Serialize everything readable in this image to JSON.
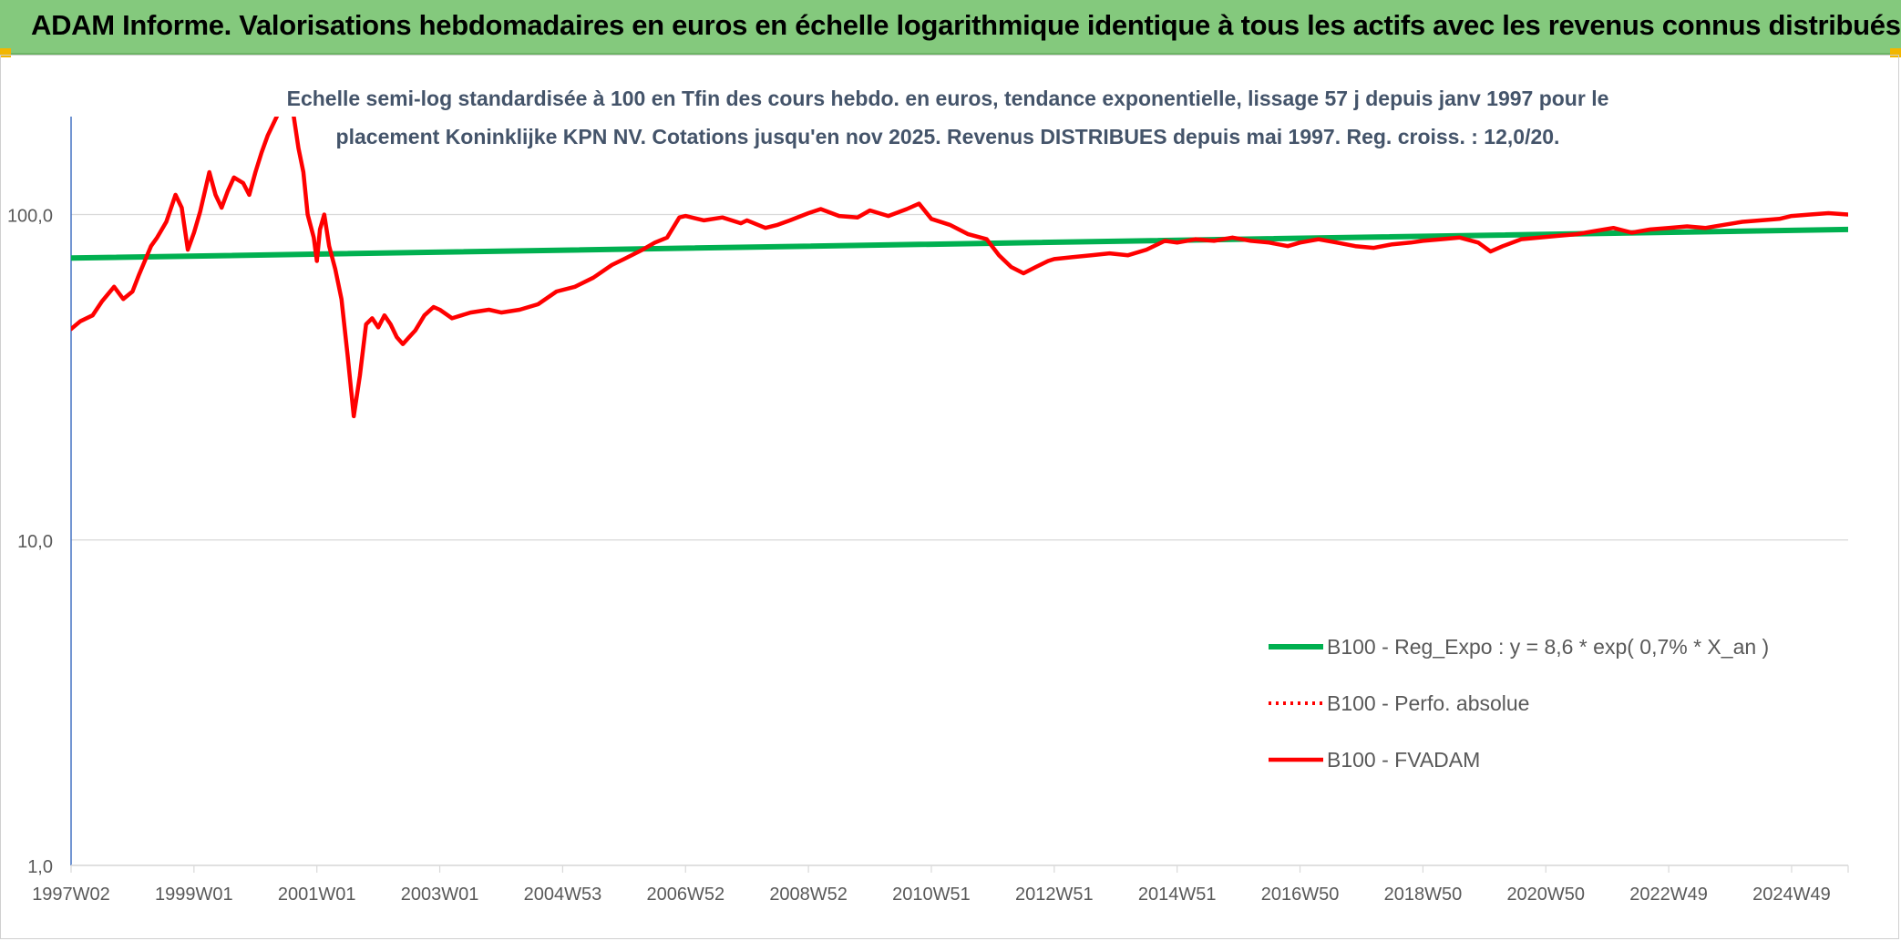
{
  "header": {
    "title": "ADAM Informe. Valorisations hebdomadaires en euros en échelle logarithmique identique à tous les actifs avec les revenus connus distribués"
  },
  "colors": {
    "header_bg": "#84c97d",
    "regression": "#00b050",
    "fvadam": "#ff0000",
    "perfo": "#ff0000",
    "axis_text": "#595959",
    "subtitle_text": "#44546a",
    "gridline": "#d9d9d9",
    "y_axis": "#4472c4"
  },
  "chart_data": {
    "type": "line",
    "title": "Echelle semi-log standardisée à 100 en Tfin des cours hebdo. en euros, tendance exponentielle, lissage 57 j depuis janv 1997 pour le placement Koninklijke KPN NV. Cotations jusqu'en nov 2025. Revenus DISTRIBUES depuis mai 1997. Reg. croiss. : 12,0/20.",
    "title_lines": [
      "Echelle semi-log standardisée à 100 en Tfin des cours hebdo. en euros, tendance exponentielle, lissage 57 j depuis janv 1997 pour le",
      "placement Koninklijke KPN NV. Cotations jusqu'en nov 2025. Revenus DISTRIBUES depuis mai 1997. Reg. croiss. : 12,0/20."
    ],
    "y_scale": "log",
    "ylim": [
      1,
      200
    ],
    "y_ticks": [
      "1,0",
      "10,0",
      "100,0"
    ],
    "y_tick_values": [
      1,
      10,
      100
    ],
    "xlim": [
      1997.0,
      2025.92
    ],
    "x_ticks": [
      "1997W02",
      "1999W01",
      "2001W01",
      "2003W01",
      "2004W53",
      "2006W52",
      "2008W52",
      "2010W51",
      "2012W51",
      "2014W51",
      "2016W50",
      "2018W50",
      "2020W50",
      "2022W49",
      "2024W49"
    ],
    "x_tick_years": [
      1997.0,
      1999.0,
      2001.0,
      2003.0,
      2005.0,
      2007.0,
      2009.0,
      2011.0,
      2013.0,
      2015.0,
      2017.0,
      2019.0,
      2021.0,
      2023.0,
      2025.0
    ],
    "grid": "horizontal",
    "legend_position": "right",
    "legend": [
      "B100 - Reg_Expo : y = 8,6 * exp( 0,7% *  X_an )",
      "B100 - Perfo. absolue",
      "B100 - FVADAM"
    ],
    "series": [
      {
        "name": "B100 - Reg_Expo : y = 8,6 * exp( 0,7% *  X_an )",
        "style": "solid-green",
        "x": [
          1997.0,
          2025.92
        ],
        "y": [
          73.5,
          90.0
        ]
      },
      {
        "name": "B100 - Perfo. absolue",
        "style": "dotted-red",
        "x": [],
        "y": []
      },
      {
        "name": "B100 - FVADAM",
        "style": "solid-red",
        "x": [
          1997.0,
          1997.15,
          1997.35,
          1997.5,
          1997.7,
          1997.85,
          1998.0,
          1998.1,
          1998.2,
          1998.3,
          1998.4,
          1998.55,
          1998.7,
          1998.8,
          1998.9,
          1999.0,
          1999.1,
          1999.25,
          1999.35,
          1999.45,
          1999.55,
          1999.65,
          1999.8,
          1999.9,
          2000.0,
          2000.1,
          2000.2,
          2000.4,
          2000.55,
          2000.6,
          2000.7,
          2000.78,
          2000.85,
          2000.95,
          2001.0,
          2001.05,
          2001.12,
          2001.2,
          2001.3,
          2001.4,
          2001.5,
          2001.6,
          2001.7,
          2001.8,
          2001.9,
          2002.0,
          2002.1,
          2002.2,
          2002.3,
          2002.4,
          2002.5,
          2002.6,
          2002.75,
          2002.9,
          2003.0,
          2003.2,
          2003.5,
          2003.8,
          2004.0,
          2004.3,
          2004.6,
          2004.9,
          2005.2,
          2005.5,
          2005.8,
          2006.0,
          2006.3,
          2006.5,
          2006.7,
          2006.9,
          2007.0,
          2007.3,
          2007.6,
          2007.9,
          2008.0,
          2008.3,
          2008.5,
          2008.7,
          2009.0,
          2009.2,
          2009.5,
          2009.8,
          2010.0,
          2010.3,
          2010.6,
          2010.8,
          2011.0,
          2011.3,
          2011.6,
          2011.9,
          2012.1,
          2012.3,
          2012.5,
          2012.7,
          2012.9,
          2013.0,
          2013.3,
          2013.6,
          2013.9,
          2014.2,
          2014.5,
          2014.8,
          2015.0,
          2015.3,
          2015.6,
          2015.9,
          2016.2,
          2016.5,
          2016.8,
          2017.0,
          2017.3,
          2017.6,
          2017.9,
          2018.2,
          2018.5,
          2018.8,
          2019.0,
          2019.3,
          2019.6,
          2019.9,
          2020.1,
          2020.3,
          2020.6,
          2020.9,
          2021.2,
          2021.5,
          2021.8,
          2022.1,
          2022.4,
          2022.7,
          2023.0,
          2023.3,
          2023.6,
          2023.9,
          2024.2,
          2024.5,
          2024.8,
          2025.0,
          2025.3,
          2025.6,
          2025.92
        ],
        "y": [
          44.5,
          47.0,
          49.0,
          54.0,
          60.0,
          55.0,
          58.0,
          65.0,
          72.0,
          80.0,
          85.0,
          95.0,
          115.0,
          105.0,
          78.0,
          88.0,
          102.0,
          135.0,
          115.0,
          105.0,
          118.0,
          130.0,
          125.0,
          115.0,
          135.0,
          155.0,
          175.0,
          210.0,
          250.0,
          215.0,
          160.0,
          135.0,
          100.0,
          85.0,
          72.0,
          90.0,
          100.0,
          80.0,
          68.0,
          55.0,
          37.0,
          24.0,
          32.0,
          46.0,
          48.0,
          45.0,
          49.0,
          46.0,
          42.0,
          40.0,
          42.0,
          44.0,
          49.0,
          52.0,
          51.0,
          48.0,
          50.0,
          51.0,
          50.0,
          51.0,
          53.0,
          58.0,
          60.0,
          64.0,
          70.0,
          73.0,
          78.0,
          82.0,
          85.0,
          98.0,
          99.0,
          96.0,
          98.0,
          94.0,
          96.0,
          91.0,
          93.0,
          96.0,
          101.0,
          104.0,
          99.0,
          98.0,
          103.0,
          99.0,
          104.0,
          108.0,
          97.0,
          93.0,
          87.0,
          84.0,
          75.0,
          69.0,
          66.0,
          69.0,
          72.0,
          73.0,
          74.0,
          75.0,
          76.0,
          75.0,
          78.0,
          83.0,
          82.0,
          84.0,
          83.0,
          85.0,
          83.0,
          82.0,
          80.0,
          82.0,
          84.0,
          82.0,
          80.0,
          79.0,
          81.0,
          82.0,
          83.0,
          84.0,
          85.0,
          82.0,
          77.0,
          80.0,
          84.0,
          85.0,
          86.0,
          87.0,
          89.0,
          91.0,
          88.0,
          90.0,
          91.0,
          92.0,
          91.0,
          93.0,
          95.0,
          96.0,
          97.0,
          99.0,
          100.0,
          101.0,
          100.0
        ]
      }
    ]
  }
}
